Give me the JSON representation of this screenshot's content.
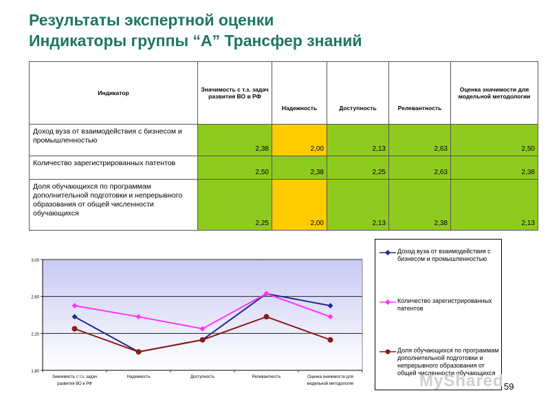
{
  "title": {
    "line1": "Результаты экспертной оценки",
    "line2": "Индикаторы группы “А” Трансфер знаний"
  },
  "table": {
    "headers": [
      "Индикатор",
      "Значимость с т.з. задач развития ВО в РФ",
      "Надежность",
      "Доступность",
      "Релевантность",
      "Оценка значимости для модельной методологии"
    ],
    "rows": [
      {
        "label": "Доход вуза от взаимодействия с бизнесом и промышленностью",
        "values": [
          "2,38",
          "2,00",
          "2,13",
          "2,63",
          "2,50"
        ],
        "colors": [
          "green",
          "yellow",
          "green",
          "green",
          "green"
        ]
      },
      {
        "label": "Количество зарегистрированных патентов",
        "values": [
          "2,50",
          "2,38",
          "2,25",
          "2,63",
          "2,38"
        ],
        "colors": [
          "green",
          "green",
          "green",
          "green",
          "green"
        ]
      },
      {
        "label": "Доля обучающихся по программам дополнительной подготовки и непрерывного образования от общей численности обучающихся",
        "values": [
          "2,25",
          "2,00",
          "2,13",
          "2,38",
          "2,13"
        ],
        "colors": [
          "green",
          "yellow",
          "green",
          "green",
          "green"
        ]
      }
    ]
  },
  "colors": {
    "green": "#8fcb1e",
    "yellow": "#ffcc00",
    "title": "#1f7563"
  },
  "chart_data": {
    "type": "line",
    "categories": [
      [
        "Значимость с т.з. задач",
        "развития ВО в РФ"
      ],
      [
        "Надежность"
      ],
      [
        "Доступность"
      ],
      [
        "Релевантность"
      ],
      [
        "Оценка значимости для",
        "модельной методологии"
      ]
    ],
    "ylim": [
      1.8,
      3.0
    ],
    "yticks": [
      1.8,
      2.2,
      2.6,
      3.0
    ],
    "ytick_labels": [
      "1,80",
      "2,20",
      "2,60",
      "3,00"
    ],
    "grid": true,
    "plot_background": "gradient lavender",
    "legend_position": "right",
    "series": [
      {
        "name": "Доход вуза от взаимодействия с бизнесом и промышленностью",
        "values": [
          2.38,
          2.0,
          2.13,
          2.63,
          2.5
        ],
        "color": "#1f2a8a",
        "marker": "diamond"
      },
      {
        "name": "Количество зарегистрированных патентов",
        "values": [
          2.5,
          2.38,
          2.25,
          2.63,
          2.38
        ],
        "color": "#ff33ff",
        "marker": "diamond"
      },
      {
        "name": "Доля обучающихся по программам дополнительной подготовки и непрерывного образования от общей численности обучающихся",
        "values": [
          2.25,
          2.0,
          2.13,
          2.38,
          2.13
        ],
        "color": "#8b1a1a",
        "marker": "circle"
      }
    ]
  },
  "page_number": "59",
  "watermark": "MyShared"
}
